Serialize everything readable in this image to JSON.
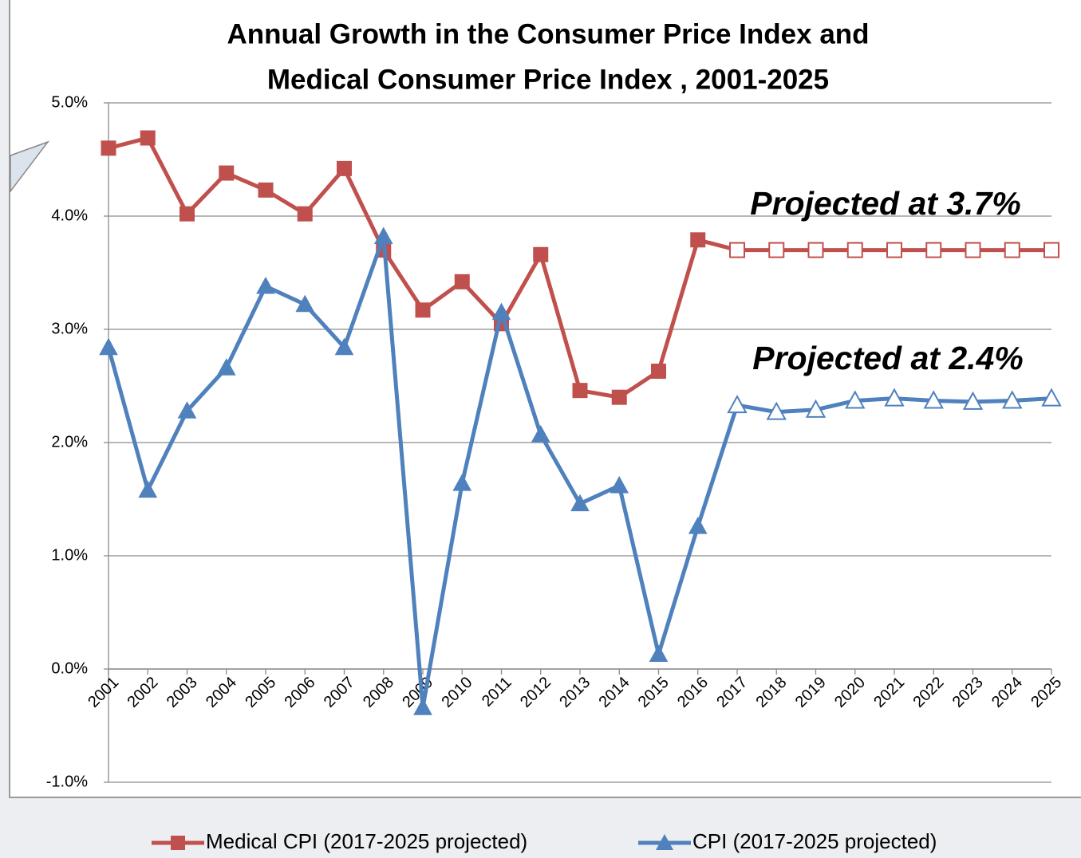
{
  "chart_data": {
    "type": "line",
    "title": [
      "Annual Growth in the Consumer Price Index and",
      "Medical Consumer Price Index , 2001-2025"
    ],
    "categories": [
      "2001",
      "2002",
      "2003",
      "2004",
      "2005",
      "2006",
      "2007",
      "2008",
      "2009",
      "2010",
      "2011",
      "2012",
      "2013",
      "2014",
      "2015",
      "2016",
      "2017",
      "2018",
      "2019",
      "2020",
      "2021",
      "2022",
      "2023",
      "2024",
      "2025"
    ],
    "series": [
      {
        "name": "Medical CPI (2017-2025 projected)",
        "color": "#c0504d",
        "marker": "square",
        "values": [
          4.6,
          4.69,
          4.02,
          4.38,
          4.23,
          4.02,
          4.42,
          3.7,
          3.17,
          3.42,
          3.05,
          3.66,
          2.46,
          2.4,
          2.63,
          3.79,
          3.7,
          3.7,
          3.7,
          3.7,
          3.7,
          3.7,
          3.7,
          3.7,
          3.7
        ]
      },
      {
        "name": "CPI (2017-2025 projected)",
        "color": "#4f81bd",
        "marker": "triangle",
        "values": [
          2.84,
          1.58,
          2.28,
          2.66,
          3.38,
          3.22,
          2.84,
          3.82,
          -0.34,
          1.64,
          3.15,
          2.07,
          1.46,
          1.62,
          0.13,
          1.26,
          2.33,
          2.27,
          2.29,
          2.37,
          2.39,
          2.37,
          2.36,
          2.37,
          2.39
        ]
      }
    ],
    "hollow_from": "2017",
    "annotations": [
      "Projected at 3.7%",
      "Projected at 2.4%"
    ],
    "ylim": [
      -1,
      5
    ],
    "yticks": [
      {
        "value": -1,
        "label": "-1.0%"
      },
      {
        "value": 0,
        "label": "0.0%"
      },
      {
        "value": 1,
        "label": "1.0%"
      },
      {
        "value": 2,
        "label": "2.0%"
      },
      {
        "value": 3,
        "label": "3.0%"
      },
      {
        "value": 4,
        "label": "4.0%"
      },
      {
        "value": 5,
        "label": "5.0%"
      }
    ],
    "grid": true,
    "legend": "bottom"
  }
}
